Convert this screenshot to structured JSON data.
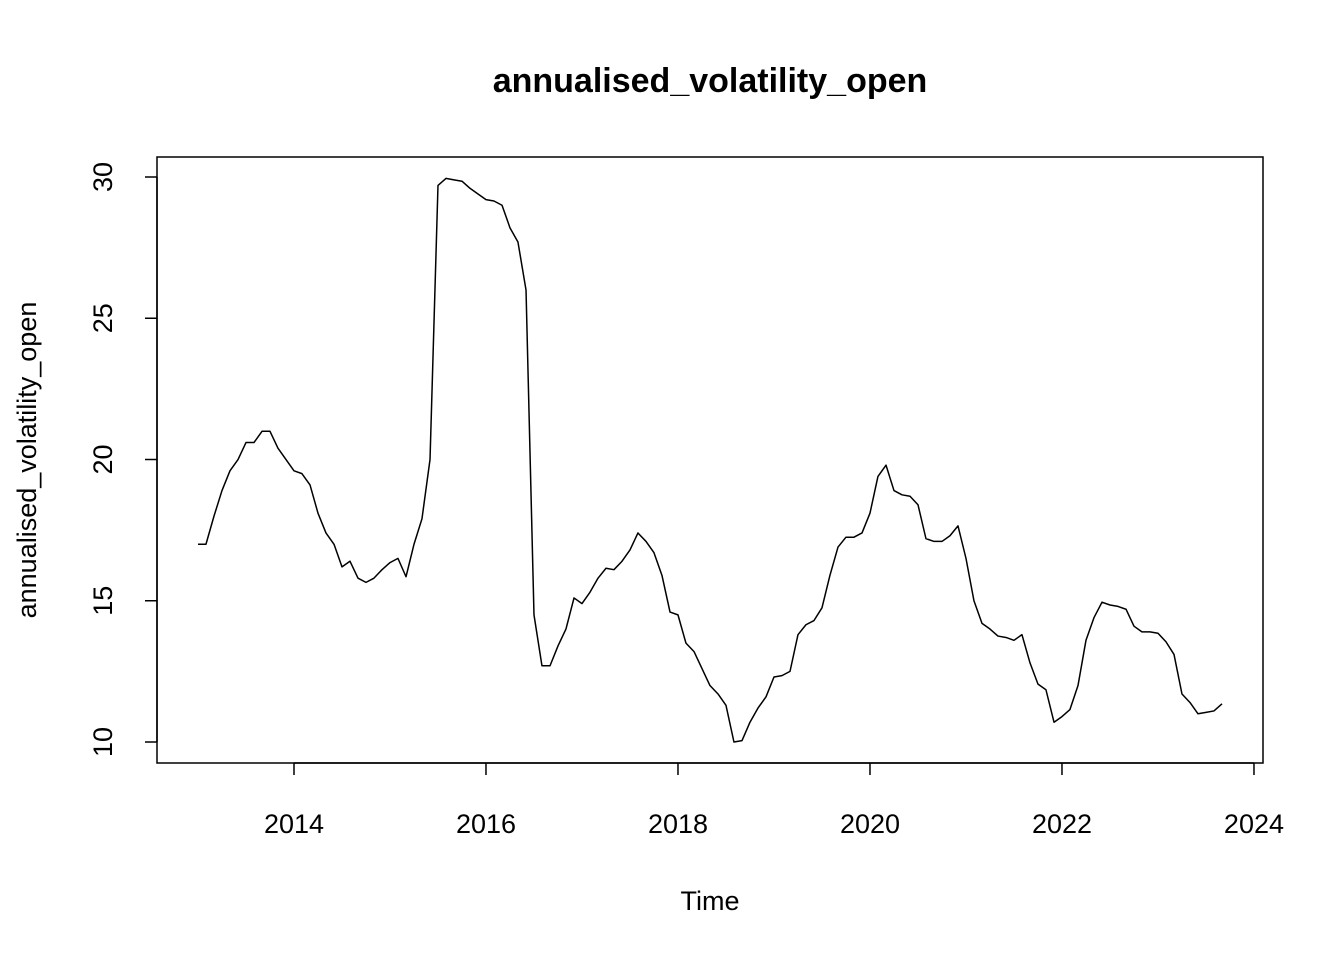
{
  "chart_data": {
    "type": "line",
    "title": "annualised_volatility_open",
    "x_label": "Time",
    "y_label": "annualised_volatility_open",
    "color": "#000000",
    "x": [
      2013,
      2013.083,
      2013.167,
      2013.25,
      2013.333,
      2013.417,
      2013.5,
      2013.583,
      2013.667,
      2013.75,
      2013.833,
      2013.917,
      2014,
      2014.083,
      2014.167,
      2014.25,
      2014.333,
      2014.417,
      2014.5,
      2014.583,
      2014.667,
      2014.75,
      2014.833,
      2014.917,
      2015,
      2015.083,
      2015.167,
      2015.25,
      2015.333,
      2015.417,
      2015.5,
      2015.583,
      2015.667,
      2015.75,
      2015.833,
      2015.917,
      2016,
      2016.083,
      2016.167,
      2016.25,
      2016.333,
      2016.417,
      2016.5,
      2016.583,
      2016.667,
      2016.75,
      2016.833,
      2016.917,
      2017,
      2017.083,
      2017.167,
      2017.25,
      2017.333,
      2017.417,
      2017.5,
      2017.583,
      2017.667,
      2017.75,
      2017.833,
      2017.917,
      2018,
      2018.083,
      2018.167,
      2018.25,
      2018.333,
      2018.417,
      2018.5,
      2018.583,
      2018.667,
      2018.75,
      2018.833,
      2018.917,
      2019,
      2019.083,
      2019.167,
      2019.25,
      2019.333,
      2019.417,
      2019.5,
      2019.583,
      2019.667,
      2019.75,
      2019.833,
      2019.917,
      2020,
      2020.083,
      2020.167,
      2020.25,
      2020.333,
      2020.417,
      2020.5,
      2020.583,
      2020.667,
      2020.75,
      2020.833,
      2020.917,
      2021,
      2021.083,
      2021.167,
      2021.25,
      2021.333,
      2021.417,
      2021.5,
      2021.583,
      2021.667,
      2021.75,
      2021.833,
      2021.917,
      2022,
      2022.083,
      2022.167,
      2022.25,
      2022.333,
      2022.417,
      2022.5,
      2022.583,
      2022.667,
      2022.75,
      2022.833,
      2022.917,
      2023,
      2023.083,
      2023.167,
      2023.25,
      2023.333,
      2023.417,
      2023.5,
      2023.583,
      2023.667
    ],
    "values": [
      17.0,
      17.0,
      18.0,
      18.9,
      19.6,
      20.0,
      20.6,
      20.6,
      21.0,
      21.0,
      20.4,
      20.0,
      19.6,
      19.5,
      19.1,
      18.1,
      17.4,
      17.0,
      16.2,
      16.4,
      15.8,
      15.65,
      15.8,
      16.1,
      16.35,
      16.5,
      15.85,
      17.0,
      17.9,
      20.0,
      29.7,
      29.95,
      29.9,
      29.85,
      29.6,
      29.4,
      29.2,
      29.15,
      29.0,
      28.2,
      27.7,
      26.0,
      14.5,
      12.7,
      12.7,
      13.4,
      14.0,
      15.1,
      14.9,
      15.3,
      15.8,
      16.15,
      16.1,
      16.4,
      16.8,
      17.4,
      17.1,
      16.7,
      15.9,
      14.6,
      14.5,
      13.5,
      13.2,
      12.6,
      12.0,
      11.7,
      11.3,
      10.0,
      10.05,
      10.7,
      11.2,
      11.6,
      12.3,
      12.35,
      12.5,
      13.8,
      14.15,
      14.3,
      14.75,
      15.9,
      16.9,
      17.25,
      17.25,
      17.4,
      18.1,
      19.4,
      19.8,
      18.9,
      18.75,
      18.7,
      18.4,
      17.2,
      17.1,
      17.1,
      17.3,
      17.65,
      16.5,
      15.0,
      14.2,
      14.0,
      13.75,
      13.7,
      13.6,
      13.8,
      12.8,
      12.05,
      11.85,
      10.7,
      10.9,
      11.15,
      12.0,
      13.6,
      14.4,
      14.95,
      14.85,
      14.8,
      14.7,
      14.1,
      13.9,
      13.9,
      13.85,
      13.55,
      13.1,
      11.7,
      11.4,
      11.0,
      11.05,
      11.1,
      11.35
    ],
    "xlim": [
      2012.573,
      2024.094
    ],
    "xticks": [
      2014,
      2016,
      2018,
      2020,
      2022,
      2024
    ],
    "ylim": [
      9.257,
      30.708
    ],
    "yticks": [
      10,
      15,
      20,
      25,
      30
    ]
  }
}
